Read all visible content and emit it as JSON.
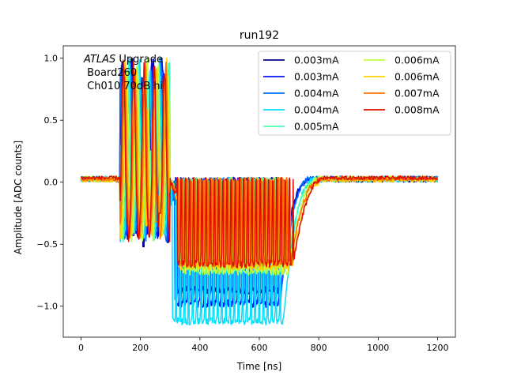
{
  "chart_data": {
    "type": "line",
    "title": "run192",
    "xlabel": "Time [ns]",
    "ylabel": "Amplitude [ADC counts]",
    "xlim": [
      -60,
      1260
    ],
    "ylim": [
      -1.25,
      1.1
    ],
    "xticks": [
      0,
      200,
      400,
      600,
      800,
      1000,
      1200
    ],
    "xtick_labels": [
      "0",
      "200",
      "400",
      "600",
      "800",
      "1000",
      "1200"
    ],
    "yticks": [
      -1.0,
      -0.5,
      0.0,
      0.5,
      1.0
    ],
    "ytick_labels": [
      "−1.0",
      "−0.5",
      "0.0",
      "0.5",
      "1.0"
    ],
    "grid": false,
    "legend_position": "top-right",
    "legend_columns": 2,
    "annotation": {
      "italic": "ATLAS",
      "rest": " Upgrade",
      "line2": " Board260",
      "line3": " Ch010 70dB hi"
    },
    "series": [
      {
        "name": "0.003mA",
        "color": "#00008f",
        "plateau": -0.87,
        "start": 320,
        "end": 665,
        "spikeX": 210,
        "spikeMin": -0.52
      },
      {
        "name": "0.003mA",
        "color": "#0010ff",
        "plateau": -0.98,
        "start": 318,
        "end": 668,
        "spikeX": 175,
        "spikeMin": -0.43
      },
      {
        "name": "0.004mA",
        "color": "#0070ff",
        "plateau": -0.95,
        "start": 312,
        "end": 672,
        "spikeX": 245,
        "spikeMin": -0.38
      },
      {
        "name": "0.004mA",
        "color": "#00e0ff",
        "plateau": -1.12,
        "start": 305,
        "end": 680,
        "spikeX": 130,
        "spikeMin": -0.48
      },
      {
        "name": "0.005mA",
        "color": "#50ffaf",
        "plateau": -0.7,
        "start": 330,
        "end": 690,
        "spikeX": 230,
        "spikeMin": -0.3
      },
      {
        "name": "0.006mA",
        "color": "#bfff40",
        "plateau": -0.72,
        "start": 335,
        "end": 700,
        "spikeX": 200,
        "spikeMin": -0.28
      },
      {
        "name": "0.006mA",
        "color": "#ffd000",
        "plateau": -0.68,
        "start": 325,
        "end": 710,
        "spikeX": 220,
        "spikeMin": -0.35
      },
      {
        "name": "0.007mA",
        "color": "#ff7000",
        "plateau": -0.65,
        "start": 328,
        "end": 705,
        "spikeX": 255,
        "spikeMin": -0.32
      },
      {
        "name": "0.008mA",
        "color": "#e01000",
        "plateau": -0.66,
        "start": 322,
        "end": 715,
        "spikeX": 265,
        "spikeMin": -0.25
      }
    ]
  }
}
